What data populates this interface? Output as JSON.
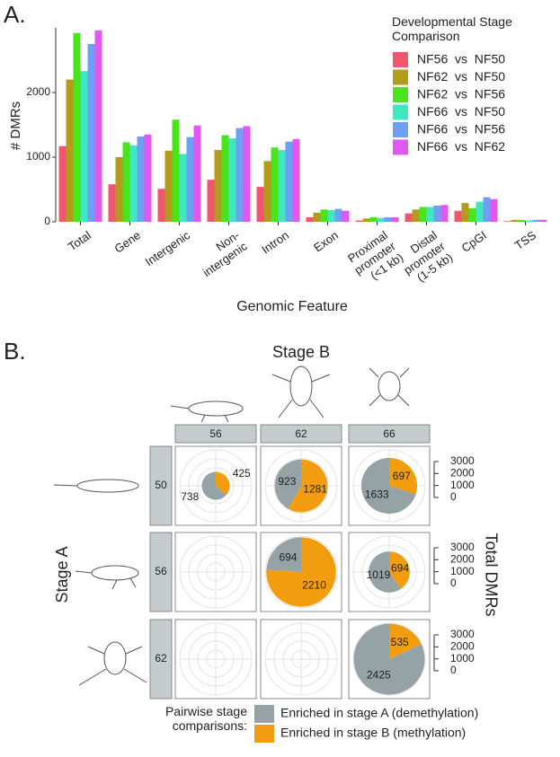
{
  "chart_data": [
    {
      "type": "bar",
      "panel_label": "A.",
      "y_label": "# DMRs",
      "x_label": "Genomic Feature",
      "legend_title": "Developmental Stage\nComparison",
      "categories": [
        "Total",
        "Gene",
        "Intergenic",
        "Non-\nintergenic",
        "Intron",
        "Exon",
        "Proximal\npromoter\n(<1 kb)",
        "Distal\npromoter\n(1-5 kb)",
        "CpGI",
        "TSS"
      ],
      "series": [
        {
          "name": "NF56  vs  NF50",
          "color": "#f0566e",
          "values": [
            1170,
            580,
            510,
            650,
            540,
            70,
            20,
            130,
            170,
            10
          ]
        },
        {
          "name": "NF62  vs  NF50",
          "color": "#b39b1b",
          "values": [
            2200,
            1000,
            1100,
            1110,
            940,
            140,
            50,
            190,
            290,
            30
          ]
        },
        {
          "name": "NF62  vs  NF56",
          "color": "#49e419",
          "values": [
            2920,
            1230,
            1580,
            1340,
            1150,
            190,
            70,
            230,
            210,
            30
          ]
        },
        {
          "name": "NF66  vs  NF50",
          "color": "#3ee8c0",
          "values": [
            2330,
            1180,
            1050,
            1290,
            1110,
            180,
            60,
            230,
            310,
            20
          ]
        },
        {
          "name": "NF66  vs  NF56",
          "color": "#6f9ef5",
          "values": [
            2750,
            1320,
            1310,
            1450,
            1240,
            200,
            70,
            250,
            380,
            30
          ]
        },
        {
          "name": "NF66  vs  NF62",
          "color": "#e257f0",
          "values": [
            2960,
            1350,
            1490,
            1480,
            1280,
            170,
            70,
            260,
            350,
            30
          ]
        }
      ],
      "ylim": [
        0,
        3000
      ],
      "yticks": [
        0,
        1000,
        2000
      ]
    },
    {
      "type": "pie-grid",
      "panel_label": "B.",
      "col_title": "Stage B",
      "row_title": "Stage A",
      "size_label": "Total DMRs",
      "legend_title": "Pairwise stage\ncomparisons:",
      "columns": [
        "56",
        "62",
        "66"
      ],
      "rows": [
        "50",
        "56",
        "62"
      ],
      "series": [
        {
          "name": "Enriched in stage A (demethylation)",
          "color": "#95a3a6",
          "values": [
            [
              738,
              923,
              1633
            ],
            [
              null,
              694,
              1019
            ],
            [
              null,
              null,
              2425
            ]
          ]
        },
        {
          "name": "Enriched in stage B (methylation)",
          "color": "#f29d0f",
          "values": [
            [
              425,
              1281,
              697
            ],
            [
              null,
              2210,
              694
            ],
            [
              null,
              null,
              535
            ]
          ]
        }
      ],
      "rlim": [
        0,
        3000
      ],
      "rticks": [
        0,
        1000,
        2000,
        3000
      ]
    }
  ]
}
